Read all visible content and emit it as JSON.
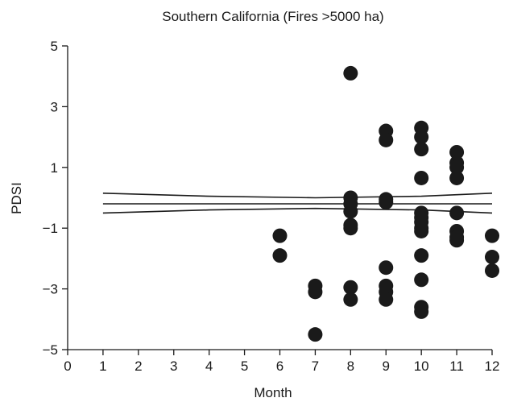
{
  "chart_data": {
    "type": "scatter",
    "title": "Southern California (Fires >5000 ha)",
    "xlabel": "Month",
    "ylabel": "PDSI",
    "xlim": [
      0,
      12
    ],
    "ylim": [
      -5,
      5
    ],
    "xticks": [
      "0",
      "1",
      "2",
      "3",
      "4",
      "5",
      "6",
      "7",
      "8",
      "9",
      "10",
      "11",
      "12"
    ],
    "yticks": [
      "5",
      "3",
      "1",
      "−1",
      "−3",
      "−5"
    ],
    "ytick_values": [
      5,
      3,
      1,
      -1,
      -3,
      -5
    ],
    "grid": false,
    "legend": "none",
    "points": [
      {
        "x": 6,
        "y": -1.25
      },
      {
        "x": 6,
        "y": -1.9
      },
      {
        "x": 7,
        "y": -2.9
      },
      {
        "x": 7,
        "y": -3.1
      },
      {
        "x": 7,
        "y": -4.5
      },
      {
        "x": 8,
        "y": 4.1
      },
      {
        "x": 8,
        "y": 0.0
      },
      {
        "x": 8,
        "y": -0.2
      },
      {
        "x": 8,
        "y": -0.45
      },
      {
        "x": 8,
        "y": -0.9
      },
      {
        "x": 8,
        "y": -1.0
      },
      {
        "x": 8,
        "y": -2.95
      },
      {
        "x": 8,
        "y": -3.35
      },
      {
        "x": 9,
        "y": 2.2
      },
      {
        "x": 9,
        "y": 1.9
      },
      {
        "x": 9,
        "y": -0.05
      },
      {
        "x": 9,
        "y": -0.15
      },
      {
        "x": 9,
        "y": -2.3
      },
      {
        "x": 9,
        "y": -2.9
      },
      {
        "x": 9,
        "y": -3.1
      },
      {
        "x": 9,
        "y": -3.35
      },
      {
        "x": 10,
        "y": 2.3
      },
      {
        "x": 10,
        "y": 2.0
      },
      {
        "x": 10,
        "y": 1.6
      },
      {
        "x": 10,
        "y": 0.65
      },
      {
        "x": 10,
        "y": -0.5
      },
      {
        "x": 10,
        "y": -0.65
      },
      {
        "x": 10,
        "y": -0.8
      },
      {
        "x": 10,
        "y": -1.0
      },
      {
        "x": 10,
        "y": -1.1
      },
      {
        "x": 10,
        "y": -1.9
      },
      {
        "x": 10,
        "y": -2.7
      },
      {
        "x": 10,
        "y": -3.6
      },
      {
        "x": 10,
        "y": -3.75
      },
      {
        "x": 11,
        "y": 1.5
      },
      {
        "x": 11,
        "y": 1.15
      },
      {
        "x": 11,
        "y": 1.0
      },
      {
        "x": 11,
        "y": 0.65
      },
      {
        "x": 11,
        "y": -0.5
      },
      {
        "x": 11,
        "y": -1.1
      },
      {
        "x": 11,
        "y": -1.3
      },
      {
        "x": 11,
        "y": -1.4
      },
      {
        "x": 12,
        "y": -1.25
      },
      {
        "x": 12,
        "y": -1.95
      },
      {
        "x": 12,
        "y": -2.4
      }
    ],
    "lines": [
      {
        "x": [
          1,
          4,
          7,
          10,
          12
        ],
        "y": [
          0.15,
          0.05,
          0.0,
          0.05,
          0.15
        ]
      },
      {
        "x": [
          1,
          12
        ],
        "y": [
          -0.2,
          -0.2
        ]
      },
      {
        "x": [
          1,
          4,
          7,
          10,
          12
        ],
        "y": [
          -0.5,
          -0.4,
          -0.35,
          -0.4,
          -0.5
        ]
      }
    ]
  }
}
